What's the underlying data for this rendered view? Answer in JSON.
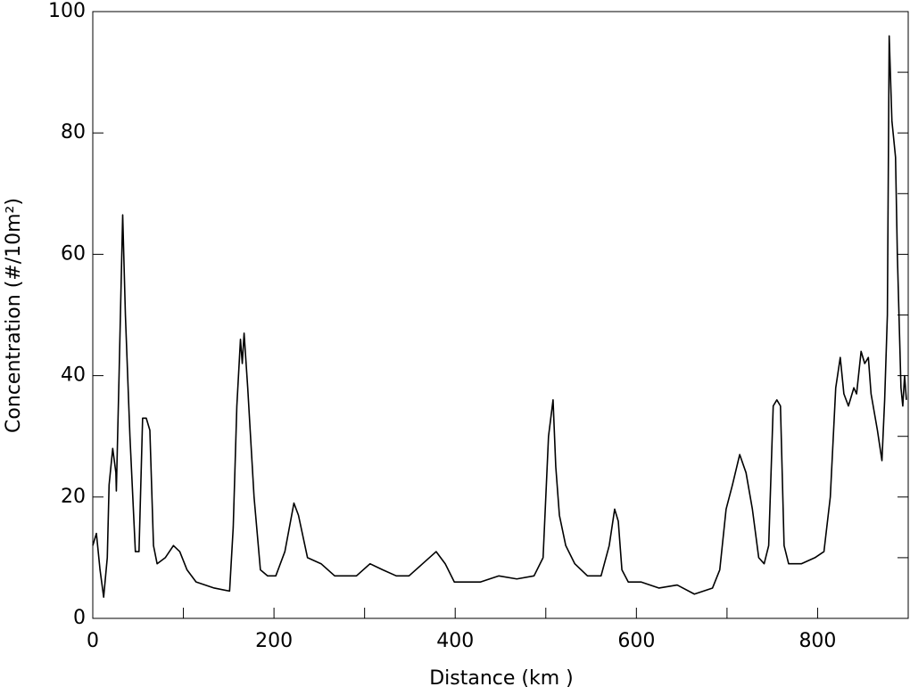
{
  "chart_data": {
    "type": "line",
    "xlabel": "Distance (km )",
    "ylabel": "Concentration (#/10m²)",
    "xlim": [
      0,
      900
    ],
    "ylim": [
      0,
      100
    ],
    "xticks": [
      0,
      200,
      400,
      600,
      800
    ],
    "yticks": [
      0,
      20,
      40,
      60,
      80,
      100
    ],
    "xminorticks": [
      100,
      300,
      500,
      700
    ],
    "yminorticks": [
      10,
      30,
      50,
      70,
      90
    ],
    "series": [
      {
        "color": "#000000",
        "x": [
          0,
          4,
          8,
          12,
          16,
          18,
          22,
          25.5,
          26,
          29,
          33,
          36,
          41,
          47,
          51,
          55,
          59,
          63,
          67,
          71,
          80,
          89,
          96,
          104,
          114,
          134,
          151,
          155,
          159,
          163,
          165,
          167,
          171,
          178,
          185,
          193,
          202,
          212,
          222,
          227,
          237,
          252,
          267,
          281,
          291,
          306,
          320,
          335,
          349,
          364,
          379,
          389,
          399,
          414,
          428,
          448,
          468,
          487,
          497,
          503,
          508,
          511,
          515,
          522,
          532,
          546,
          561,
          570,
          576,
          580,
          584,
          591,
          605,
          625,
          645,
          664,
          684,
          692,
          699,
          706,
          714,
          721,
          728,
          735,
          741,
          746,
          751,
          755,
          759,
          763,
          768,
          782,
          797,
          807,
          814,
          820,
          825,
          829,
          834,
          840,
          843,
          848,
          852,
          856,
          859,
          866,
          871,
          874,
          877,
          879,
          882,
          886,
          888,
          892,
          894,
          896,
          898
        ],
        "values": [
          12,
          14,
          8,
          3.5,
          10,
          22,
          28,
          24,
          21,
          40,
          66.5,
          50,
          30,
          11,
          11,
          33,
          33,
          31,
          12,
          9,
          10,
          12,
          11,
          8,
          6,
          5,
          4.5,
          15,
          35,
          46,
          42,
          47,
          38,
          20,
          8,
          7,
          7,
          11,
          19,
          17,
          10,
          9,
          7,
          7,
          7,
          9,
          8,
          7,
          7,
          9,
          11,
          9,
          6,
          6,
          6,
          7,
          6.5,
          7,
          10,
          30,
          36,
          25,
          17,
          12,
          9,
          7,
          7,
          12,
          18,
          16,
          8,
          6,
          6,
          5,
          5.5,
          4,
          5,
          8,
          18,
          22,
          27,
          24,
          18,
          10,
          9,
          12,
          35,
          36,
          35,
          12,
          9,
          9,
          10,
          11,
          20,
          38,
          43,
          37,
          35,
          38,
          37,
          44,
          42,
          43,
          37,
          31,
          26,
          36,
          50,
          96,
          82,
          76,
          60,
          38,
          35,
          40,
          36
        ]
      }
    ]
  }
}
